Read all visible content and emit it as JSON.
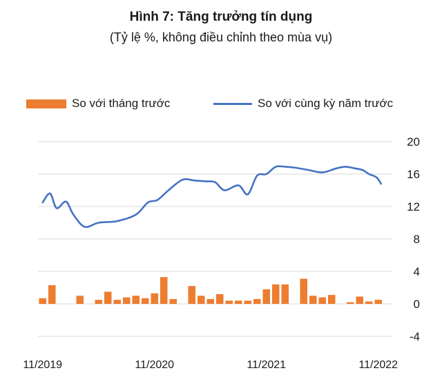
{
  "title": "Hình 7: Tăng trưởng tín dụng",
  "subtitle": "(Tỷ lệ %, không điều chỉnh theo mùa vụ)",
  "colors": {
    "bar": "#ED7D31",
    "line": "#4472C4",
    "grid": "#D9D9D9"
  },
  "chart_data": {
    "type": "bar+line",
    "title": "Hình 7: Tăng trưởng tín dụng",
    "subtitle": "(Tỷ lệ %, không điều chỉnh theo mùa vụ)",
    "ylim": [
      -4,
      20
    ],
    "yticks": [
      -4,
      0,
      4,
      8,
      12,
      16,
      20
    ],
    "x_index_range": [
      0,
      37
    ],
    "xtick_labels": [
      {
        "index": 0,
        "label": "11/2019"
      },
      {
        "index": 12,
        "label": "11/2020"
      },
      {
        "index": 24,
        "label": "11/2021"
      },
      {
        "index": 36,
        "label": "11/2022"
      }
    ],
    "grid": true,
    "legend_position": "top",
    "series": [
      {
        "name": "So với tháng trước",
        "kind": "bar",
        "values": [
          0.7,
          2.3,
          0.0,
          0.0,
          1.0,
          0.0,
          0.5,
          1.5,
          0.5,
          0.8,
          1.0,
          0.7,
          1.3,
          3.3,
          0.6,
          0.0,
          2.2,
          1.0,
          0.6,
          1.2,
          0.4,
          0.4,
          0.4,
          0.6,
          1.8,
          2.4,
          2.4,
          0.0,
          3.1,
          1.0,
          0.8,
          1.1,
          0.0,
          0.2,
          0.9,
          0.3,
          0.5,
          0.0
        ]
      },
      {
        "name": "So với cùng kỳ năm trước",
        "kind": "line",
        "x": [
          0,
          0.8,
          1.5,
          2.5,
          3.3,
          4.5,
          6,
          8,
          10,
          11.3,
          12.3,
          13.5,
          15,
          16.3,
          17.5,
          18.5,
          19.5,
          21,
          22,
          23,
          24,
          25,
          26,
          27,
          28.5,
          30,
          31.5,
          32.5,
          33.5,
          34.3,
          35,
          35.8,
          36.3
        ],
        "y": [
          12.5,
          13.6,
          11.8,
          12.6,
          11.0,
          9.5,
          10.0,
          10.2,
          11.0,
          12.5,
          12.8,
          14.0,
          15.3,
          15.2,
          15.1,
          15.0,
          14.0,
          14.6,
          13.5,
          15.8,
          16.0,
          16.9,
          16.9,
          16.8,
          16.5,
          16.2,
          16.7,
          16.9,
          16.7,
          16.5,
          16.0,
          15.6,
          14.8
        ]
      }
    ]
  }
}
